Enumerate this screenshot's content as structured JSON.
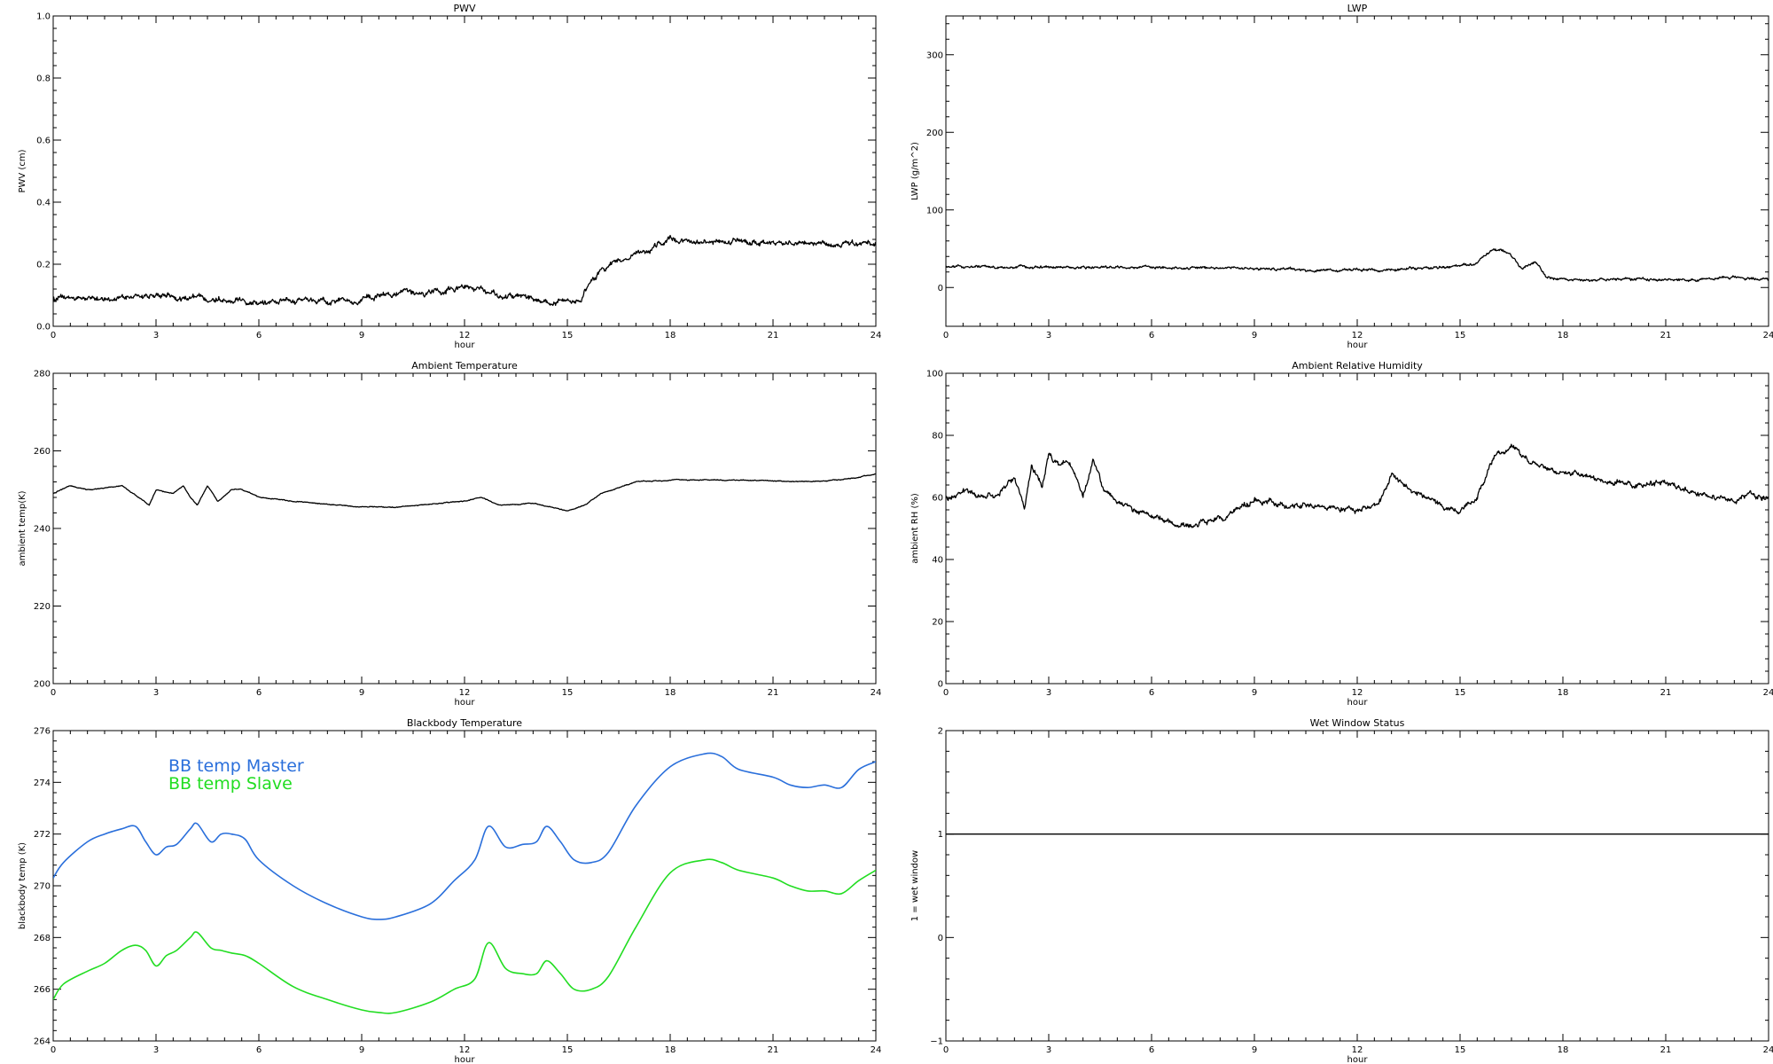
{
  "chart_data": [
    {
      "id": "pwv",
      "type": "line",
      "title": "PWV",
      "xlabel": "hour",
      "ylabel": "PWV (cm)",
      "xlim": [
        0,
        24
      ],
      "ylim": [
        0.0,
        1.0
      ],
      "xticks": [
        0,
        3,
        6,
        9,
        12,
        15,
        18,
        21,
        24
      ],
      "xtick_labels": [
        "0",
        "3",
        "6",
        "9",
        "12",
        "15",
        "18",
        "21",
        "24"
      ],
      "yticks": [
        0.0,
        0.2,
        0.4,
        0.6,
        0.8,
        1.0
      ],
      "ytick_labels": [
        "0.0",
        "0.2",
        "0.4",
        "0.6",
        "0.8",
        "1.0"
      ],
      "noise": 0.008,
      "series": [
        {
          "name": "",
          "color": "#000000",
          "style": "noisy",
          "x": [
            0,
            1,
            2,
            3,
            4,
            5,
            6,
            7,
            8,
            9,
            10,
            11,
            12,
            13,
            14,
            14.6,
            15,
            15.4,
            15.7,
            16,
            16.5,
            17,
            17.5,
            17.8,
            18,
            19,
            20,
            21,
            22,
            23,
            24
          ],
          "y": [
            0.09,
            0.09,
            0.09,
            0.1,
            0.09,
            0.09,
            0.08,
            0.08,
            0.08,
            0.09,
            0.1,
            0.11,
            0.13,
            0.1,
            0.09,
            0.07,
            0.08,
            0.09,
            0.15,
            0.18,
            0.21,
            0.23,
            0.25,
            0.27,
            0.28,
            0.27,
            0.27,
            0.27,
            0.27,
            0.26,
            0.27
          ]
        }
      ]
    },
    {
      "id": "lwp",
      "type": "line",
      "title": "LWP",
      "xlabel": "hour",
      "ylabel": "LWP (g/m^2)",
      "xlim": [
        0,
        24
      ],
      "ylim": [
        -50,
        350
      ],
      "xticks": [
        0,
        3,
        6,
        9,
        12,
        15,
        18,
        21,
        24
      ],
      "xtick_labels": [
        "0",
        "3",
        "6",
        "9",
        "12",
        "15",
        "18",
        "21",
        "24"
      ],
      "yticks": [
        0,
        100,
        200,
        300
      ],
      "ytick_labels": [
        "0",
        "100",
        "200",
        "300"
      ],
      "noise": 1.5,
      "series": [
        {
          "name": "",
          "color": "#000000",
          "style": "noisy",
          "x": [
            0,
            3,
            6,
            9,
            11,
            12,
            14,
            15,
            15.5,
            16,
            16.4,
            16.8,
            17.2,
            17.5,
            18,
            20,
            22,
            23,
            23.5,
            24
          ],
          "y": [
            26,
            26,
            26,
            25,
            22,
            23,
            24,
            27,
            33,
            50,
            44,
            25,
            33,
            14,
            11,
            11,
            10,
            14,
            12,
            10
          ]
        }
      ]
    },
    {
      "id": "ambient-temperature",
      "type": "line",
      "title": "Ambient Temperature",
      "xlabel": "hour",
      "ylabel": "ambient temp(K)",
      "xlim": [
        0,
        24
      ],
      "ylim": [
        200,
        280
      ],
      "xticks": [
        0,
        3,
        6,
        9,
        12,
        15,
        18,
        21,
        24
      ],
      "xtick_labels": [
        "0",
        "3",
        "6",
        "9",
        "12",
        "15",
        "18",
        "21",
        "24"
      ],
      "yticks": [
        200,
        220,
        240,
        260,
        280
      ],
      "ytick_labels": [
        "200",
        "220",
        "240",
        "260",
        "280"
      ],
      "noise": 0.1,
      "series": [
        {
          "name": "",
          "color": "#000000",
          "style": "noisy",
          "x": [
            0,
            0.5,
            1,
            2,
            2.5,
            2.8,
            3,
            3.5,
            3.8,
            4,
            4.2,
            4.5,
            4.8,
            5.2,
            5.5,
            6,
            7,
            9,
            10,
            12,
            12.5,
            13,
            14,
            15,
            15.5,
            16,
            17,
            18,
            20,
            22,
            23,
            24
          ],
          "y": [
            249,
            251,
            250,
            251,
            248,
            246,
            250,
            249,
            251,
            248,
            246,
            251,
            247,
            250,
            250,
            248,
            247,
            245.5,
            245.5,
            247,
            248,
            246,
            246.5,
            244.5,
            246,
            249,
            252,
            252.5,
            252.5,
            252,
            252.5,
            254
          ]
        }
      ]
    },
    {
      "id": "ambient-relative-humidity",
      "type": "line",
      "title": "Ambient Relative Humidity",
      "xlabel": "hour",
      "ylabel": "ambient RH (%)",
      "xlim": [
        0,
        24
      ],
      "ylim": [
        0,
        100
      ],
      "xticks": [
        0,
        3,
        6,
        9,
        12,
        15,
        18,
        21,
        24
      ],
      "xtick_labels": [
        "0",
        "3",
        "6",
        "9",
        "12",
        "15",
        "18",
        "21",
        "24"
      ],
      "yticks": [
        0,
        20,
        40,
        60,
        80,
        100
      ],
      "ytick_labels": [
        "0",
        "20",
        "40",
        "60",
        "80",
        "100"
      ],
      "noise": 0.8,
      "series": [
        {
          "name": "",
          "color": "#000000",
          "style": "noisy",
          "x": [
            0,
            0.5,
            1,
            1.5,
            2,
            2.3,
            2.5,
            2.8,
            3,
            3.3,
            3.6,
            4,
            4.3,
            4.6,
            5,
            5.5,
            6,
            7,
            8,
            9,
            10,
            11,
            12,
            12.6,
            13,
            14,
            14.5,
            15,
            15.5,
            16,
            16.5,
            17,
            18,
            19,
            20,
            21,
            22,
            23,
            23.5,
            24
          ],
          "y": [
            60,
            62,
            60,
            61,
            66,
            56,
            70,
            63,
            74,
            70,
            72,
            60,
            72,
            63,
            58,
            56,
            54,
            51,
            53,
            59,
            57,
            57,
            56,
            58,
            67,
            60,
            57,
            56,
            60,
            73,
            76,
            71,
            68,
            66,
            64,
            65,
            61,
            59,
            62,
            59
          ]
        }
      ]
    },
    {
      "id": "blackbody-temperature",
      "type": "line",
      "title": "Blackbody Temperature",
      "xlabel": "hour",
      "ylabel": "blackbody temp (K)",
      "xlim": [
        0,
        24
      ],
      "ylim": [
        264,
        276
      ],
      "xticks": [
        0,
        3,
        6,
        9,
        12,
        15,
        18,
        21,
        24
      ],
      "xtick_labels": [
        "0",
        "3",
        "6",
        "9",
        "12",
        "15",
        "18",
        "21",
        "24"
      ],
      "yticks": [
        264,
        266,
        268,
        270,
        272,
        274,
        276
      ],
      "ytick_labels": [
        "264",
        "266",
        "268",
        "270",
        "272",
        "274",
        "276"
      ],
      "noise": 0,
      "legend": "top-left",
      "series": [
        {
          "name": "BB temp Master",
          "color": "#2a6fdb",
          "style": "smooth",
          "x": [
            0,
            0.3,
            1,
            1.5,
            2,
            2.4,
            2.7,
            3,
            3.3,
            3.6,
            4,
            4.2,
            4.6,
            4.9,
            5.2,
            5.6,
            6,
            7,
            8,
            9,
            9.5,
            10,
            11,
            11.7,
            12.3,
            12.7,
            13.2,
            13.7,
            14.1,
            14.4,
            14.8,
            15.2,
            15.7,
            16.2,
            17,
            18,
            19,
            19.5,
            20,
            21,
            21.5,
            22,
            22.5,
            23,
            23.5,
            24
          ],
          "y": [
            270.3,
            270.9,
            271.7,
            272.0,
            272.2,
            272.3,
            271.7,
            271.2,
            271.5,
            271.6,
            272.2,
            272.4,
            271.7,
            272.0,
            272.0,
            271.8,
            271.0,
            270.0,
            269.3,
            268.8,
            268.7,
            268.8,
            269.3,
            270.2,
            271.0,
            272.3,
            271.5,
            271.6,
            271.7,
            272.3,
            271.7,
            271.0,
            270.9,
            271.3,
            273.1,
            274.6,
            275.1,
            275.0,
            274.5,
            274.2,
            273.9,
            273.8,
            273.9,
            273.8,
            274.5,
            274.8
          ]
        },
        {
          "name": "BB temp Slave",
          "color": "#22dd22",
          "style": "smooth",
          "x": [
            0,
            0.3,
            1,
            1.5,
            2,
            2.4,
            2.7,
            3,
            3.3,
            3.6,
            4,
            4.2,
            4.6,
            4.9,
            5.2,
            5.6,
            6,
            7,
            8,
            9,
            9.5,
            10,
            11,
            11.7,
            12.3,
            12.7,
            13.2,
            13.7,
            14.1,
            14.4,
            14.8,
            15.2,
            15.7,
            16.2,
            17,
            18,
            19,
            19.5,
            20,
            21,
            21.5,
            22,
            22.5,
            23,
            23.5,
            24
          ],
          "y": [
            265.6,
            266.2,
            266.7,
            267.0,
            267.5,
            267.7,
            267.5,
            266.9,
            267.3,
            267.5,
            268.0,
            268.2,
            267.6,
            267.5,
            267.4,
            267.3,
            267.0,
            266.1,
            265.6,
            265.2,
            265.1,
            265.1,
            265.5,
            266.0,
            266.4,
            267.8,
            266.8,
            266.6,
            266.6,
            267.1,
            266.6,
            266.0,
            266.0,
            266.5,
            268.4,
            270.5,
            271.0,
            270.9,
            270.6,
            270.3,
            270.0,
            269.8,
            269.8,
            269.7,
            270.2,
            270.6
          ]
        }
      ]
    },
    {
      "id": "wet-window-status",
      "type": "line",
      "title": "Wet Window Status",
      "xlabel": "hour",
      "ylabel": "1 = wet window",
      "xlim": [
        0,
        24
      ],
      "ylim": [
        -1,
        2
      ],
      "xticks": [
        0,
        3,
        6,
        9,
        12,
        15,
        18,
        21,
        24
      ],
      "xtick_labels": [
        "0",
        "3",
        "6",
        "9",
        "12",
        "15",
        "18",
        "21",
        "24"
      ],
      "yticks": [
        -1,
        0,
        1,
        2
      ],
      "ytick_labels": [
        "−1",
        "0",
        "1",
        "2"
      ],
      "noise": 0,
      "series": [
        {
          "name": "",
          "color": "#000000",
          "style": "straight",
          "x": [
            0,
            24
          ],
          "y": [
            1,
            1
          ]
        }
      ]
    }
  ]
}
